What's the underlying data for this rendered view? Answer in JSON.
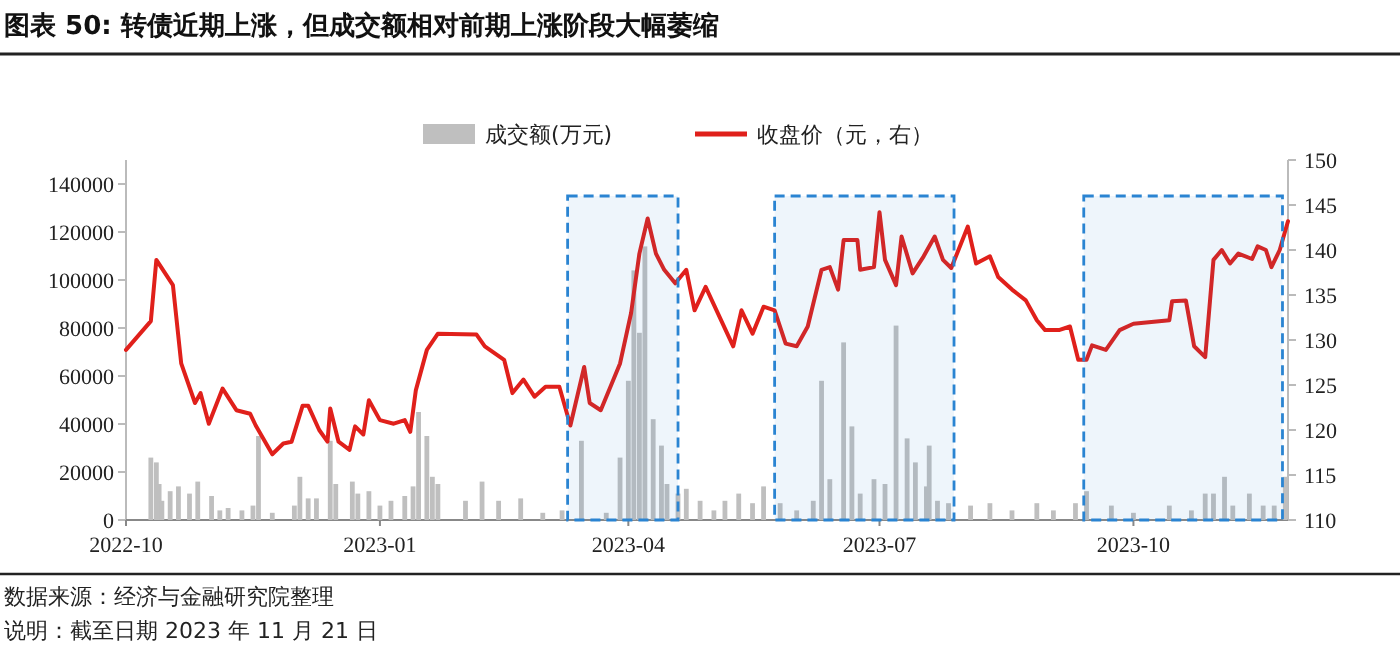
{
  "chart_data": {
    "type": "bar",
    "title": "图表 50:  转债近期上涨，但成交额相对前期上涨阶段大幅萎缩",
    "annotations": [
      "数据来源：经济与金融研究院整理",
      "说明：截至日期 2023 年 11 月 21 日"
    ],
    "xlim": [
      "2022-10-01",
      "2023-11-26"
    ],
    "xticks": [
      {
        "value": "2022-10-01",
        "label": "2022-10"
      },
      {
        "value": "2023-01-01",
        "label": "2023-01"
      },
      {
        "value": "2023-04-01",
        "label": "2023-04"
      },
      {
        "value": "2023-07-01",
        "label": "2023-07"
      },
      {
        "value": "2023-10-01",
        "label": "2023-10"
      }
    ],
    "ylim": [
      0,
      150000
    ],
    "yticks": [
      0,
      20000,
      40000,
      60000,
      80000,
      100000,
      120000,
      140000
    ],
    "y2lim": [
      110,
      150
    ],
    "y2ticks": [
      110,
      115,
      120,
      125,
      130,
      135,
      140,
      145,
      150
    ],
    "legend": "top",
    "series": [
      {
        "name": "成交额(万元)",
        "color": "#bfbfbf",
        "x": [
          "2022-10-10",
          "2022-10-12",
          "2022-10-13",
          "2022-10-14",
          "2022-10-17",
          "2022-10-20",
          "2022-10-24",
          "2022-10-27",
          "2022-11-01",
          "2022-11-04",
          "2022-11-07",
          "2022-11-12",
          "2022-11-16",
          "2022-11-18",
          "2022-11-23",
          "2022-12-01",
          "2022-12-03",
          "2022-12-06",
          "2022-12-09",
          "2022-12-14",
          "2022-12-16",
          "2022-12-22",
          "2022-12-24",
          "2022-12-28",
          "2023-01-01",
          "2023-01-05",
          "2023-01-10",
          "2023-01-13",
          "2023-01-15",
          "2023-01-18",
          "2023-01-20",
          "2023-01-22",
          "2023-02-01",
          "2023-02-07",
          "2023-02-13",
          "2023-02-21",
          "2023-03-01",
          "2023-03-08",
          "2023-03-15",
          "2023-03-24",
          "2023-03-29",
          "2023-04-01",
          "2023-04-03",
          "2023-04-05",
          "2023-04-07",
          "2023-04-10",
          "2023-04-13",
          "2023-04-15",
          "2023-04-19",
          "2023-04-22",
          "2023-04-27",
          "2023-05-02",
          "2023-05-06",
          "2023-05-11",
          "2023-05-16",
          "2023-05-20",
          "2023-05-26",
          "2023-06-01",
          "2023-06-07",
          "2023-06-10",
          "2023-06-13",
          "2023-06-18",
          "2023-06-21",
          "2023-06-24",
          "2023-06-29",
          "2023-07-03",
          "2023-07-07",
          "2023-07-11",
          "2023-07-14",
          "2023-07-18",
          "2023-07-19",
          "2023-07-22",
          "2023-07-26",
          "2023-08-03",
          "2023-08-10",
          "2023-08-18",
          "2023-08-27",
          "2023-09-02",
          "2023-09-10",
          "2023-09-14",
          "2023-09-23",
          "2023-10-01",
          "2023-10-14",
          "2023-10-22",
          "2023-10-27",
          "2023-10-30",
          "2023-11-03",
          "2023-11-06",
          "2023-11-12",
          "2023-11-17",
          "2023-11-21",
          "2023-11-25"
        ],
        "values": [
          26000,
          24000,
          15000,
          8000,
          12000,
          14000,
          11000,
          16000,
          10000,
          4000,
          5000,
          4000,
          6000,
          35000,
          3000,
          6000,
          18000,
          9000,
          9000,
          33000,
          15000,
          16000,
          11000,
          12000,
          6000,
          8000,
          10000,
          14000,
          45000,
          35000,
          18000,
          15000,
          8000,
          16000,
          8000,
          9000,
          3000,
          4000,
          33000,
          3000,
          26000,
          58000,
          104000,
          78000,
          114000,
          42000,
          31000,
          15000,
          11000,
          13000,
          8000,
          4000,
          8000,
          11000,
          7000,
          14000,
          7000,
          4000,
          8000,
          58000,
          17000,
          74000,
          39000,
          11000,
          17000,
          15000,
          81000,
          34000,
          24000,
          14000,
          31000,
          8000,
          7000,
          6000,
          7000,
          4000,
          7000,
          4000,
          7000,
          12000,
          6000,
          3000,
          6000,
          4000,
          11000,
          11000,
          18000,
          6000,
          11000,
          6000,
          6000,
          18000
        ]
      },
      {
        "type": "line",
        "name": "收盘价（元，右）",
        "color": "#e0201b",
        "axis": "y2",
        "x": [
          "2022-10-01",
          "2022-10-10",
          "2022-10-12",
          "2022-10-18",
          "2022-10-21",
          "2022-10-26",
          "2022-10-28",
          "2022-10-31",
          "2022-11-05",
          "2022-11-10",
          "2022-11-15",
          "2022-11-17",
          "2022-11-23",
          "2022-11-27",
          "2022-11-30",
          "2022-12-04",
          "2022-12-06",
          "2022-12-10",
          "2022-12-13",
          "2022-12-14",
          "2022-12-17",
          "2022-12-21",
          "2022-12-23",
          "2022-12-26",
          "2022-12-28",
          "2023-01-01",
          "2023-01-06",
          "2023-01-10",
          "2023-01-12",
          "2023-01-14",
          "2023-01-18",
          "2023-01-22",
          "2023-02-05",
          "2023-02-08",
          "2023-02-15",
          "2023-02-18",
          "2023-02-22",
          "2023-02-26",
          "2023-03-02",
          "2023-03-07",
          "2023-03-11",
          "2023-03-16",
          "2023-03-18",
          "2023-03-22",
          "2023-03-29",
          "2023-04-02",
          "2023-04-05",
          "2023-04-08",
          "2023-04-11",
          "2023-04-14",
          "2023-04-18",
          "2023-04-22",
          "2023-04-25",
          "2023-04-29",
          "2023-05-04",
          "2023-05-09",
          "2023-05-12",
          "2023-05-16",
          "2023-05-20",
          "2023-05-24",
          "2023-05-28",
          "2023-06-01",
          "2023-06-05",
          "2023-06-10",
          "2023-06-13",
          "2023-06-16",
          "2023-06-18",
          "2023-06-23",
          "2023-06-24",
          "2023-06-29",
          "2023-07-01",
          "2023-07-03",
          "2023-07-07",
          "2023-07-09",
          "2023-07-13",
          "2023-07-17",
          "2023-07-21",
          "2023-07-24",
          "2023-07-27",
          "2023-08-02",
          "2023-08-05",
          "2023-08-10",
          "2023-08-13",
          "2023-08-18",
          "2023-08-23",
          "2023-08-27",
          "2023-08-30",
          "2023-09-04",
          "2023-09-08",
          "2023-09-11",
          "2023-09-14",
          "2023-09-16",
          "2023-09-21",
          "2023-09-26",
          "2023-10-01",
          "2023-10-14",
          "2023-10-15",
          "2023-10-20",
          "2023-10-23",
          "2023-10-27",
          "2023-10-30",
          "2023-11-02",
          "2023-11-05",
          "2023-11-08",
          "2023-11-13",
          "2023-11-15",
          "2023-11-18",
          "2023-11-20",
          "2023-11-23",
          "2023-11-26"
        ],
        "values": [
          128.9,
          132.1,
          138.9,
          136.1,
          127.4,
          123.0,
          124.1,
          120.7,
          124.6,
          122.2,
          121.8,
          120.5,
          117.3,
          118.5,
          118.7,
          122.7,
          122.7,
          120.0,
          118.7,
          122.4,
          118.7,
          117.8,
          120.4,
          119.5,
          123.3,
          121.1,
          120.7,
          121.1,
          119.8,
          124.4,
          128.9,
          130.7,
          130.6,
          129.3,
          127.8,
          124.1,
          125.6,
          123.7,
          124.8,
          124.8,
          120.5,
          127.0,
          123.0,
          122.2,
          127.4,
          133.0,
          139.6,
          143.5,
          139.6,
          137.8,
          136.3,
          137.8,
          133.3,
          135.9,
          132.6,
          129.3,
          133.3,
          130.7,
          133.7,
          133.3,
          129.6,
          129.3,
          131.5,
          137.8,
          138.1,
          135.6,
          141.1,
          141.1,
          137.8,
          138.1,
          144.2,
          138.9,
          136.1,
          141.5,
          137.4,
          139.3,
          141.5,
          138.9,
          138.0,
          142.6,
          138.5,
          139.3,
          137.0,
          135.6,
          134.4,
          132.2,
          131.1,
          131.1,
          131.5,
          127.8,
          127.8,
          129.4,
          128.9,
          131.1,
          131.8,
          132.2,
          134.3,
          134.4,
          129.3,
          128.1,
          138.9,
          140.0,
          138.5,
          139.6,
          139.0,
          140.4,
          140.0,
          138.1,
          140.0,
          143.2
        ]
      }
    ],
    "bands": [
      {
        "axis": "x",
        "from": "2023-03-10",
        "to": "2023-04-19",
        "color": "#2a84d2"
      },
      {
        "axis": "x",
        "from": "2023-05-24",
        "to": "2023-07-28",
        "color": "#2a84d2"
      },
      {
        "axis": "x",
        "from": "2023-09-13",
        "to": "2023-11-24",
        "color": "#2a84d2"
      }
    ]
  }
}
